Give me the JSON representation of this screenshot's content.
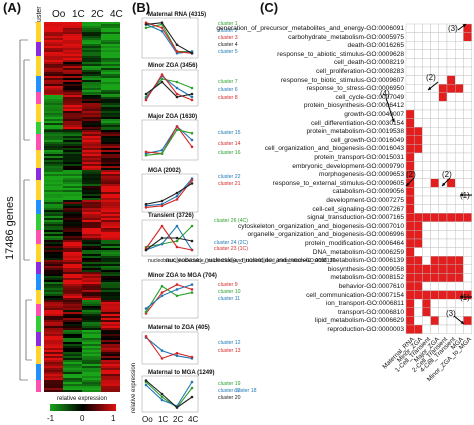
{
  "panels": {
    "a": "(A)",
    "b": "(B)",
    "c": "(C)"
  },
  "heatmap": {
    "y_label": "17486 genes",
    "cluster_header": "cluster",
    "columns": [
      "Oo",
      "1C",
      "2C",
      "4C"
    ],
    "legend_title": "relative expression",
    "legend_ticks": [
      "-1",
      "0",
      "1"
    ],
    "colors": {
      "low": "#1aa41a",
      "mid": "#000000",
      "high": "#e01010"
    }
  },
  "profiles": {
    "y_axis_label": "relative expression",
    "x_ticks": [
      "Oo",
      "1C",
      "2C",
      "4C"
    ],
    "groups": [
      {
        "title": "Maternal RNA (4315)",
        "clusters": [
          "cluster 1",
          "cluster 2",
          "cluster 3",
          "cluster 4",
          "cluster 5"
        ]
      },
      {
        "title": "Minor ZGA (3456)",
        "clusters": [
          "cluster 7",
          "cluster 6",
          "cluster 8"
        ]
      },
      {
        "title": "Major ZGA (1630)",
        "clusters": [
          "cluster 15",
          "cluster 14",
          "cluster 16"
        ]
      },
      {
        "title": "MGA (2002)",
        "clusters": [
          "cluster 22",
          "cluster 21"
        ]
      },
      {
        "title": "Transient (3726)",
        "clusters": [
          "cluster 26 (4C)",
          "cluster 24 (2C)",
          "cluster 23 (1C)"
        ]
      },
      {
        "title": "nucleobase,_nucleoside,_nucleotide_and_nucleic_acid_metabolism-GO:0006139",
        "clusters": []
      },
      {
        "title": "Minor ZGA to MGA (704)",
        "clusters": [
          "cluster 9",
          "cluster 10",
          "cluster 11"
        ]
      },
      {
        "title": "Maternal to ZGA (405)",
        "clusters": [
          "cluster 12",
          "cluster 13"
        ]
      },
      {
        "title": "Maternal to MGA (1249)",
        "clusters": [
          "cluster 19",
          "cluster 17",
          "cluster 18",
          "cluster 20"
        ]
      }
    ],
    "colors": {
      "c1": "#2ca02c",
      "c2": "#1f77b4",
      "c3": "#d62728",
      "c4": "#222222"
    }
  },
  "go_table": {
    "columns": [
      "Maternal_RNA",
      "Minor_ZGA",
      "1-Cell_Transient",
      "Major_ZGA",
      "2-Cell_Transient",
      "4-Cell_Transient",
      "MGA",
      "Minor_ZGA_to_MGA"
    ],
    "rows": [
      "generation_of_precursor_metabolites_and_energy-GO:0006091",
      "carbohydrate_metabolism-GO:0005975",
      "death-GO:0016265",
      "response_to_abiotic_stimulus-GO:0009628",
      "cell_death-GO:0008219",
      "cell_proliferation-GO:0008283",
      "response_to_biotic_stimulus-GO:0009607",
      "response_to_stress-GO:0006950",
      "cell_cycle-GO:0007049",
      "protein_biosynthesis-GO:0006412",
      "growth-GO:0040007",
      "cell_differentiation-GO:0030154",
      "protein_metabolism-GO:0019538",
      "cell_growth-GO:0016049",
      "cell_organization_and_biogenesis-GO:0016043",
      "protein_transport-GO:0015031",
      "embryonic_development-GO:0009790",
      "morphogenesis-GO:0009653",
      "response_to_external_stimulus-GO:0009605",
      "catabolism-GO:0009056",
      "development-GO:0007275",
      "cell-cell_signaling-GO:0007267",
      "signal_transduction-GO:0007165",
      "cytoskeleton_organization_and_biogenesis-GO:0007010",
      "organelle_organization_and_biogenesis-GO:0006996",
      "protein_modification-GO:0006464",
      "DNA_metabolism-GO:0006259",
      "nucleobase,_nucleoside,_nucleotide_and_nucleic_acid_metabolism-GO:0006139",
      "biosynthesis-GO:0009058",
      "metabolism-GO:0008152",
      "behavior-GO:0007610",
      "cell_communication-GO:0007154",
      "ion_transport-GO:0006811",
      "transport-GO:0006810",
      "lipid_metabolism-GO:0006629",
      "reproduction-GO:0000003"
    ],
    "filled": [
      [
        0,
        0,
        0,
        0,
        0,
        0,
        0,
        1
      ],
      [
        0,
        0,
        0,
        0,
        0,
        0,
        0,
        1
      ],
      [
        0,
        0,
        0,
        0,
        0,
        0,
        0,
        0
      ],
      [
        0,
        0,
        0,
        0,
        0,
        0,
        0,
        0
      ],
      [
        0,
        0,
        0,
        0,
        0,
        0,
        0,
        0
      ],
      [
        0,
        0,
        0,
        0,
        0,
        0,
        0,
        0
      ],
      [
        0,
        0,
        0,
        0,
        0,
        1,
        0,
        0
      ],
      [
        0,
        0,
        0,
        0,
        1,
        1,
        1,
        0
      ],
      [
        0,
        0,
        0,
        0,
        1,
        0,
        0,
        0
      ],
      [
        0,
        0,
        0,
        0,
        0,
        0,
        0,
        0
      ],
      [
        1,
        0,
        0,
        0,
        0,
        0,
        0,
        0
      ],
      [
        1,
        0,
        0,
        0,
        0,
        0,
        0,
        0
      ],
      [
        1,
        1,
        0,
        0,
        0,
        0,
        0,
        0
      ],
      [
        1,
        1,
        0,
        0,
        0,
        0,
        0,
        0
      ],
      [
        1,
        1,
        0,
        0,
        0,
        0,
        0,
        0
      ],
      [
        1,
        0,
        0,
        0,
        0,
        0,
        0,
        0
      ],
      [
        1,
        0,
        0,
        0,
        0,
        0,
        0,
        0
      ],
      [
        1,
        0,
        0,
        0,
        0,
        0,
        0,
        0
      ],
      [
        1,
        0,
        0,
        1,
        0,
        1,
        0,
        0
      ],
      [
        1,
        0,
        0,
        0,
        0,
        0,
        0,
        0
      ],
      [
        1,
        0,
        0,
        0,
        0,
        0,
        0,
        0
      ],
      [
        1,
        0,
        0,
        0,
        0,
        0,
        0,
        0
      ],
      [
        1,
        1,
        1,
        1,
        1,
        1,
        1,
        1
      ],
      [
        1,
        1,
        0,
        0,
        0,
        0,
        0,
        0
      ],
      [
        1,
        1,
        0,
        0,
        0,
        0,
        0,
        0
      ],
      [
        1,
        1,
        0,
        0,
        0,
        0,
        0,
        0
      ],
      [
        1,
        0,
        0,
        0,
        0,
        0,
        0,
        0
      ],
      [
        1,
        1,
        0,
        1,
        1,
        1,
        1,
        0
      ],
      [
        1,
        1,
        1,
        1,
        1,
        1,
        1,
        0
      ],
      [
        1,
        1,
        1,
        1,
        1,
        1,
        1,
        0
      ],
      [
        1,
        1,
        0,
        0,
        0,
        0,
        0,
        0
      ],
      [
        1,
        1,
        1,
        1,
        1,
        1,
        1,
        1
      ],
      [
        1,
        0,
        1,
        0,
        0,
        0,
        0,
        0
      ],
      [
        1,
        0,
        1,
        0,
        0,
        0,
        0,
        0
      ],
      [
        1,
        0,
        0,
        1,
        0,
        0,
        0,
        1
      ],
      [
        1,
        1,
        0,
        0,
        0,
        0,
        0,
        0
      ]
    ],
    "fill_color": "#e21e1e",
    "annotations": [
      "(3)",
      "(2)",
      "(4)",
      "(2)",
      "(2)",
      "(1)",
      "(1)",
      "(3)"
    ]
  }
}
